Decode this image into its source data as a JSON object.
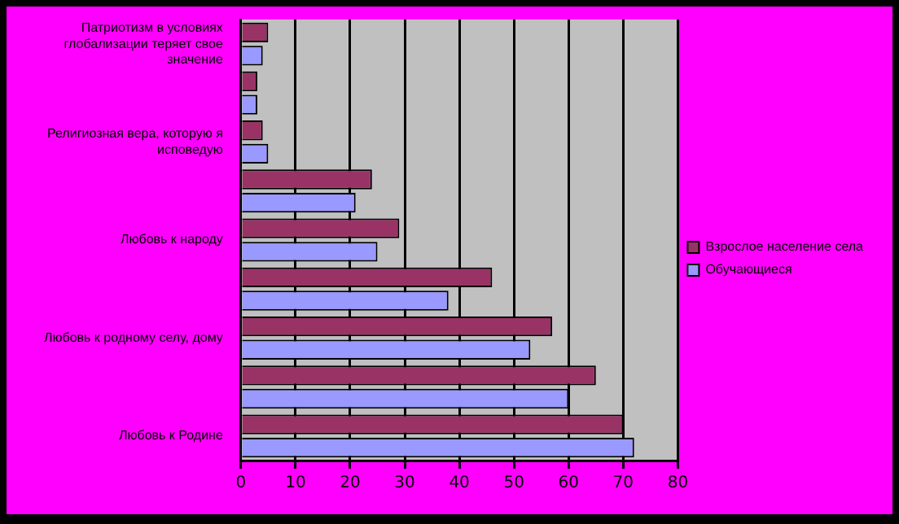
{
  "chart_data": {
    "type": "bar",
    "orientation": "horizontal",
    "categories": [
      "Патриотизм в условиях глобализации теряет свое значение",
      null,
      "Религиозная вера, которую я исповедую",
      null,
      "Любовь к народу",
      null,
      "Любовь к родному селу, дому",
      null,
      "Любовь к Родине"
    ],
    "series": [
      {
        "name": "Взрослое население села",
        "color": "#993366",
        "values": [
          5,
          3,
          4,
          24,
          29,
          46,
          57,
          65,
          70
        ]
      },
      {
        "name": "Обучающиеся",
        "color": "#9999ff",
        "values": [
          4,
          3,
          5,
          21,
          25,
          38,
          53,
          60,
          72
        ]
      }
    ],
    "xlim": [
      0,
      80
    ],
    "xticks": [
      0,
      10,
      20,
      30,
      40,
      50,
      60,
      70,
      80
    ],
    "grid": "x",
    "legend": "right"
  }
}
